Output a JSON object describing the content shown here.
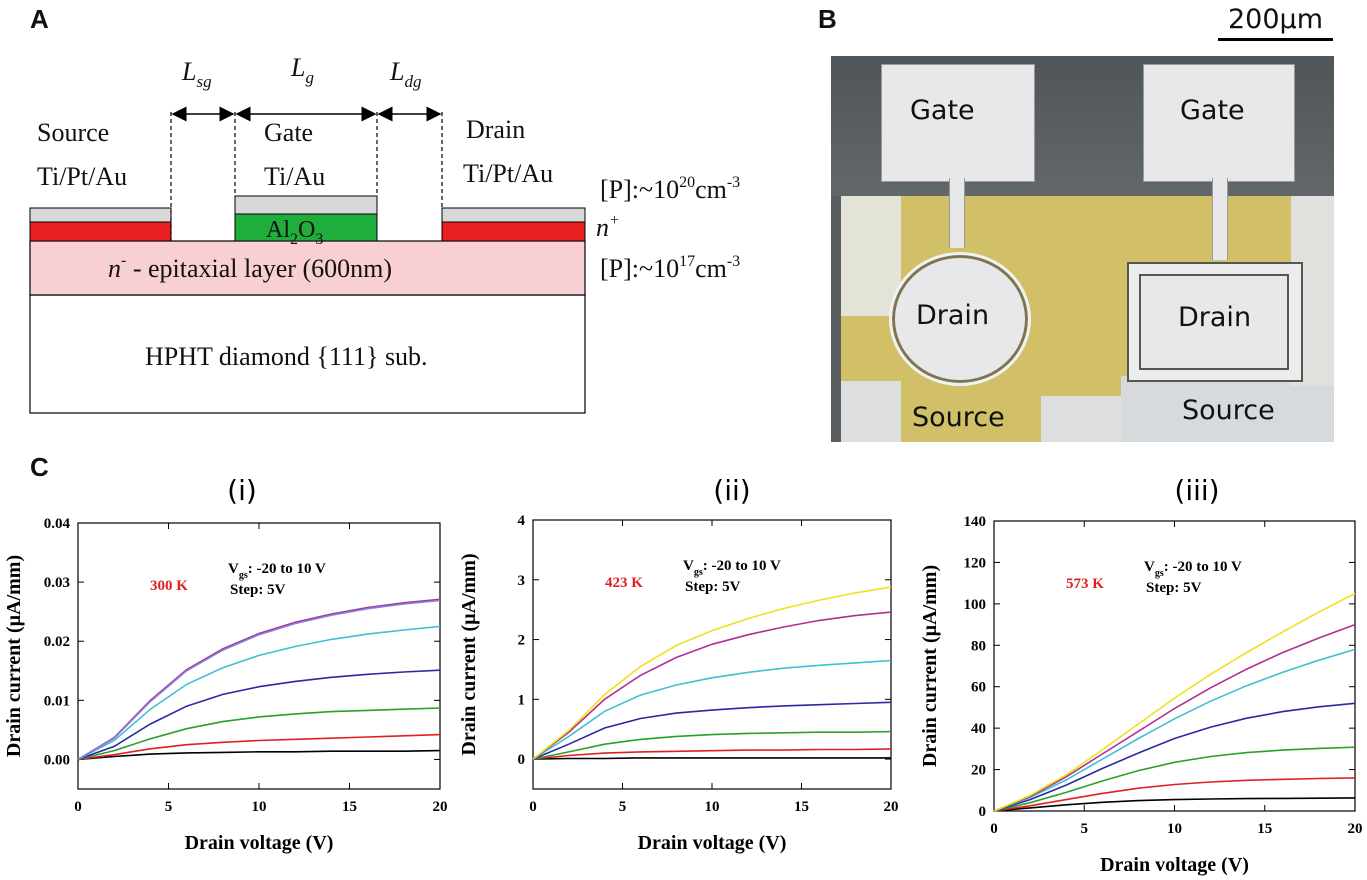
{
  "panels": {
    "a": "A",
    "b": "B",
    "c": "C"
  },
  "panel_a": {
    "dims": {
      "lsg": "L",
      "lsg_sub": "sg",
      "lg": "L",
      "lg_sub": "g",
      "ldg": "L",
      "ldg_sub": "dg"
    },
    "source": {
      "name": "Source",
      "metal": "Ti/Pt/Au"
    },
    "gate": {
      "name": "Gate",
      "metal": "Ti/Au",
      "oxide": "Al",
      "oxide_sub1": "2",
      "oxide_mid": "O",
      "oxide_sub2": "3"
    },
    "drain": {
      "name": "Drain",
      "metal": "Ti/Pt/Au"
    },
    "nplus_doping": {
      "prefix": "[P]:~10",
      "exp": "20",
      "suffix": "cm",
      "unit_exp": "-3"
    },
    "nplus_label": {
      "base": "n",
      "sup": "+"
    },
    "epi_layer": {
      "base": "n",
      "sup": "-",
      "text": " - epitaxial layer (600nm)"
    },
    "epi_doping": {
      "prefix": "[P]:~10",
      "exp": "17",
      "suffix": "cm",
      "unit_exp": "-3"
    },
    "substrate": "HPHT diamond {111} sub.",
    "colors": {
      "metal": "#d8d8d8",
      "nplus": "#e82020",
      "oxide": "#1fae3c",
      "epi": "#f8cfd3",
      "substrate": "#ffffff"
    }
  },
  "panel_b": {
    "scale_bar": "200µm",
    "left_device": {
      "gate": "Gate",
      "drain": "Drain",
      "source": "Source"
    },
    "right_device": {
      "gate": "Gate",
      "drain": "Drain",
      "source": "Source"
    }
  },
  "chart_data": [
    {
      "type": "line",
      "title": "(i)",
      "temp_label": "300 K",
      "vg_label": "V",
      "vg_sub": "gs",
      "vg_text": ": -20 to 10 V",
      "step_label": "Step: 5V",
      "xlabel": "Drain voltage (V)",
      "ylabel": "Drain current (µA/mm)",
      "xlim": [
        0,
        20
      ],
      "ylim": [
        -0.005,
        0.04
      ],
      "xticks": [
        "0",
        "5",
        "10",
        "15",
        "20"
      ],
      "yticks": [
        "0.00",
        "0.01",
        "0.02",
        "0.03",
        "0.04"
      ],
      "x": [
        0,
        2,
        4,
        6,
        8,
        10,
        12,
        14,
        16,
        18,
        20
      ],
      "series": [
        {
          "color": "#000000",
          "values": [
            0,
            0.0005,
            0.0009,
            0.0011,
            0.0012,
            0.0013,
            0.0013,
            0.0014,
            0.0014,
            0.0014,
            0.0015
          ]
        },
        {
          "color": "#e02020",
          "values": [
            0,
            0.0008,
            0.0018,
            0.0025,
            0.0029,
            0.0032,
            0.0034,
            0.0036,
            0.0038,
            0.004,
            0.0042
          ]
        },
        {
          "color": "#2aa02a",
          "values": [
            0,
            0.0015,
            0.0035,
            0.0052,
            0.0064,
            0.0072,
            0.0077,
            0.0081,
            0.0083,
            0.0085,
            0.0087
          ]
        },
        {
          "color": "#2a2aa0",
          "values": [
            0,
            0.0022,
            0.006,
            0.009,
            0.011,
            0.0123,
            0.0132,
            0.0139,
            0.0144,
            0.0148,
            0.0151
          ]
        },
        {
          "color": "#40c0d0",
          "values": [
            0,
            0.0032,
            0.0085,
            0.0127,
            0.0155,
            0.0176,
            0.0191,
            0.0203,
            0.0212,
            0.0219,
            0.0225
          ]
        },
        {
          "color": "#b03090",
          "values": [
            0,
            0.0037,
            0.01,
            0.0152,
            0.0187,
            0.0213,
            0.0232,
            0.0246,
            0.0257,
            0.0265,
            0.0271
          ]
        },
        {
          "color": "#8080e0",
          "values": [
            0,
            0.0036,
            0.0098,
            0.015,
            0.0185,
            0.0211,
            0.023,
            0.0244,
            0.0255,
            0.0263,
            0.0269
          ]
        }
      ]
    },
    {
      "type": "line",
      "title": "(ii)",
      "temp_label": "423 K",
      "vg_label": "V",
      "vg_sub": "gs",
      "vg_text": ": -20 to 10 V",
      "step_label": "Step: 5V",
      "xlabel": "Drain voltage (V)",
      "ylabel": "Drain current (µA/mm)",
      "xlim": [
        0,
        20
      ],
      "ylim": [
        -0.5,
        4
      ],
      "xticks": [
        "0",
        "5",
        "10",
        "15",
        "20"
      ],
      "yticks": [
        "0",
        "1",
        "2",
        "3",
        "4"
      ],
      "x": [
        0,
        2,
        4,
        6,
        8,
        10,
        12,
        14,
        16,
        18,
        20
      ],
      "series": [
        {
          "color": "#000000",
          "values": [
            0,
            0.01,
            0.01,
            0.02,
            0.02,
            0.02,
            0.02,
            0.02,
            0.02,
            0.02,
            0.02
          ]
        },
        {
          "color": "#e02020",
          "values": [
            0,
            0.06,
            0.1,
            0.12,
            0.13,
            0.14,
            0.15,
            0.15,
            0.16,
            0.16,
            0.17
          ]
        },
        {
          "color": "#2aa02a",
          "values": [
            0,
            0.12,
            0.25,
            0.33,
            0.38,
            0.41,
            0.43,
            0.44,
            0.45,
            0.45,
            0.46
          ]
        },
        {
          "color": "#2a2aa0",
          "values": [
            0,
            0.25,
            0.52,
            0.68,
            0.77,
            0.82,
            0.86,
            0.89,
            0.91,
            0.93,
            0.95
          ]
        },
        {
          "color": "#40c0d0",
          "values": [
            0,
            0.38,
            0.8,
            1.07,
            1.24,
            1.36,
            1.45,
            1.52,
            1.57,
            1.61,
            1.65
          ]
        },
        {
          "color": "#b03090",
          "values": [
            0,
            0.45,
            1.0,
            1.4,
            1.7,
            1.92,
            2.08,
            2.21,
            2.32,
            2.4,
            2.46
          ]
        },
        {
          "color": "#f0e020",
          "values": [
            0,
            0.48,
            1.08,
            1.55,
            1.9,
            2.15,
            2.35,
            2.52,
            2.66,
            2.78,
            2.88
          ]
        }
      ]
    },
    {
      "type": "line",
      "title": "(iii)",
      "temp_label": "573 K",
      "vg_label": "V",
      "vg_sub": "gs",
      "vg_text": ": -20 to 10 V",
      "step_label": "Step: 5V",
      "xlabel": "Drain voltage (V)",
      "ylabel": "Drain current (µA/mm)",
      "xlim": [
        0,
        20
      ],
      "ylim": [
        0,
        140
      ],
      "xticks": [
        "0",
        "5",
        "10",
        "15",
        "20"
      ],
      "yticks": [
        "0",
        "20",
        "40",
        "60",
        "80",
        "100",
        "120",
        "140"
      ],
      "x": [
        0,
        2,
        4,
        6,
        8,
        10,
        12,
        14,
        16,
        18,
        20
      ],
      "series": [
        {
          "color": "#000000",
          "values": [
            0,
            1.5,
            3.0,
            4.2,
            5.0,
            5.5,
            5.8,
            6.0,
            6.1,
            6.2,
            6.3
          ]
        },
        {
          "color": "#e02020",
          "values": [
            0,
            2.5,
            5.5,
            8.5,
            11.0,
            12.8,
            14.0,
            14.8,
            15.3,
            15.7,
            16.0
          ]
        },
        {
          "color": "#2aa02a",
          "values": [
            0,
            4.0,
            9.0,
            14.5,
            19.5,
            23.5,
            26.3,
            28.2,
            29.4,
            30.2,
            30.8
          ]
        },
        {
          "color": "#2a2aa0",
          "values": [
            0,
            5.5,
            12.5,
            20.5,
            28.0,
            35.0,
            40.5,
            44.8,
            48.0,
            50.3,
            52.0
          ]
        },
        {
          "color": "#40c0d0",
          "values": [
            0,
            6.5,
            15.0,
            25.0,
            35.0,
            44.5,
            53.0,
            60.5,
            67.0,
            72.8,
            78.0
          ]
        },
        {
          "color": "#b03090",
          "values": [
            0,
            7.0,
            16.5,
            27.5,
            38.5,
            49.5,
            59.5,
            68.5,
            76.5,
            83.5,
            90.0
          ]
        },
        {
          "color": "#f0e020",
          "values": [
            0,
            7.5,
            17.5,
            29.5,
            42.0,
            54.5,
            66.0,
            76.5,
            86.5,
            96.0,
            105.0
          ]
        }
      ]
    }
  ]
}
